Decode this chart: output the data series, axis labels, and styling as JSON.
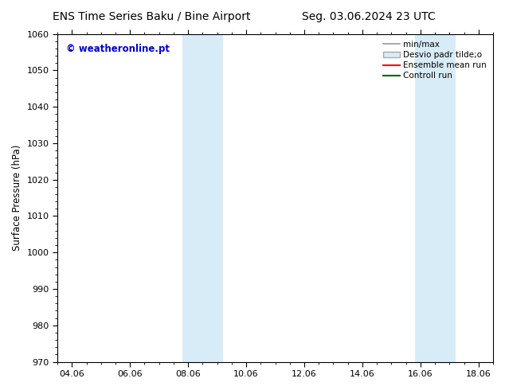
{
  "title_left": "ENS Time Series Baku / Bine Airport",
  "title_right": "Seg. 03.06.2024 23 UTC",
  "ylabel": "Surface Pressure (hPa)",
  "ylim": [
    970,
    1060
  ],
  "yticks": [
    970,
    980,
    990,
    1000,
    1010,
    1020,
    1030,
    1040,
    1050,
    1060
  ],
  "xtick_labels": [
    "04.06",
    "06.06",
    "08.06",
    "10.06",
    "12.06",
    "14.06",
    "16.06",
    "18.06"
  ],
  "xtick_positions": [
    0,
    2,
    4,
    6,
    8,
    10,
    12,
    14
  ],
  "xmin": -0.5,
  "xmax": 14.5,
  "bg_color": "#ffffff",
  "plot_bg_color": "#ffffff",
  "shaded_regions": [
    {
      "xstart": 3.8,
      "xend": 5.2,
      "color": "#d8ecf8"
    },
    {
      "xstart": 11.8,
      "xend": 13.2,
      "color": "#d8ecf8"
    }
  ],
  "watermark_text": "© weatheronline.pt",
  "watermark_color": "#0000cc",
  "legend_entries": [
    {
      "label": "min/max",
      "color": "#999999",
      "lw": 1.2
    },
    {
      "label": "Desvio padr tilde;o",
      "patch_color": "#d8ecf8",
      "patch_edge": "#aaaaaa"
    },
    {
      "label": "Ensemble mean run",
      "color": "#ff0000",
      "lw": 1.5
    },
    {
      "label": "Controll run",
      "color": "#006600",
      "lw": 1.5
    }
  ],
  "title_fontsize": 10,
  "tick_fontsize": 8,
  "ylabel_fontsize": 8.5,
  "watermark_fontsize": 8.5,
  "legend_fontsize": 7.5
}
